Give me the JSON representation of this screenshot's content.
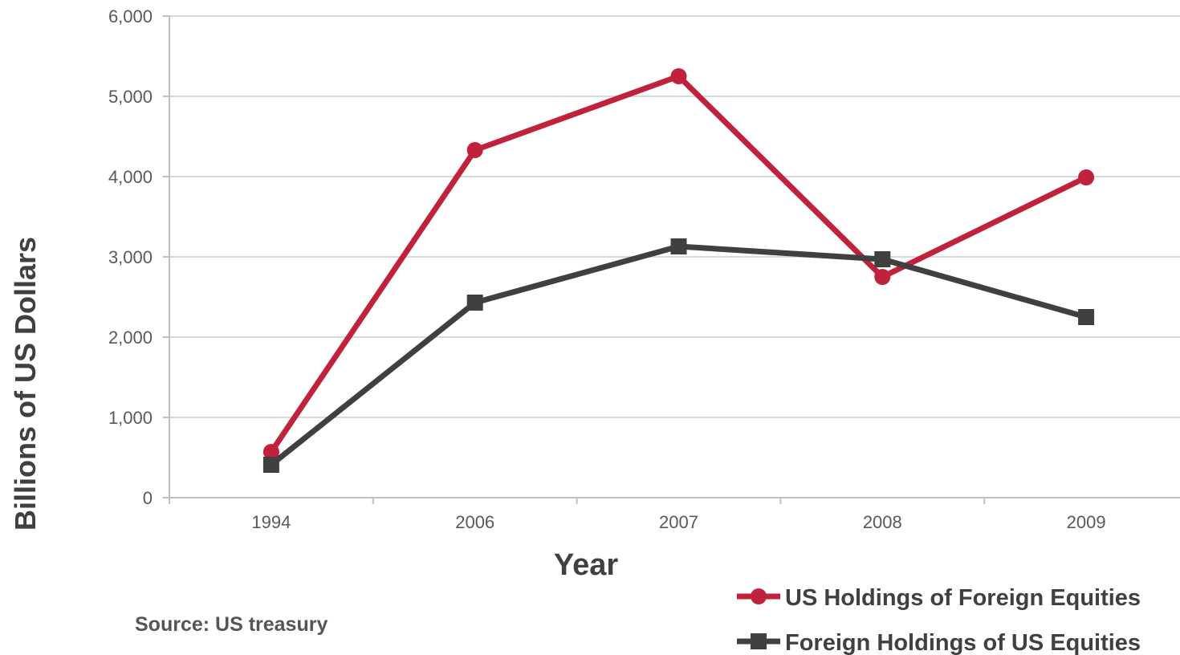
{
  "chart_data": {
    "type": "line",
    "categories": [
      "1994",
      "2006",
      "2007",
      "2008",
      "2009"
    ],
    "series": [
      {
        "name": "US Holdings of Foreign Equities",
        "values": [
          570,
          4330,
          5250,
          2750,
          3990
        ],
        "color": "#c0223b",
        "marker": "circle"
      },
      {
        "name": "Foreign Holdings of US Equities",
        "values": [
          410,
          2430,
          3130,
          2970,
          2250
        ],
        "color": "#404040",
        "marker": "square"
      }
    ],
    "yticks": [
      "0",
      "1,000",
      "2,000",
      "3,000",
      "4,000",
      "5,000",
      "6,000"
    ],
    "ylim": [
      0,
      6000
    ],
    "xlabel": "Year",
    "ylabel": "Billions of US Dollars",
    "grid": true,
    "legend_position": "bottom-right"
  },
  "source": "Source: US treasury"
}
